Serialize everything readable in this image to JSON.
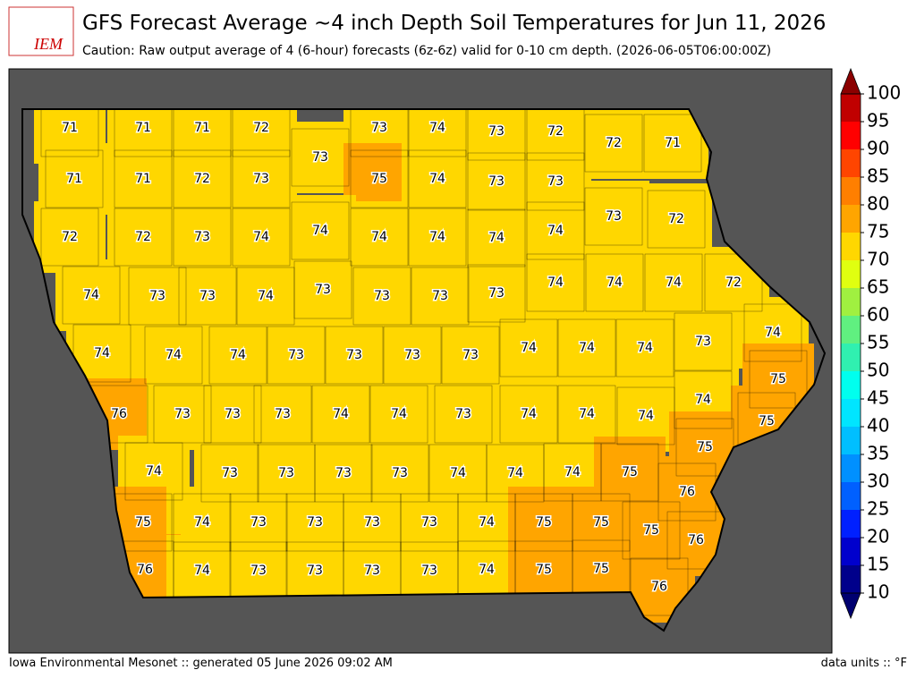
{
  "logo": "IEM",
  "title": "GFS Forecast Average ~4 inch Depth Soil Temperatures for Jun 11, 2026",
  "subtitle": "Caution: Raw output average of 4 (6-hour) forecasts (6z-6z) valid for 0-10 cm depth. (2026-06-05T06:00:00Z)",
  "footer_left": "Iowa Environmental Mesonet :: generated 05 June 2026 09:02 AM",
  "footer_right": "data units :: °F",
  "colorbar": {
    "ticks": [
      10,
      15,
      20,
      25,
      30,
      35,
      40,
      45,
      50,
      55,
      60,
      65,
      70,
      75,
      80,
      85,
      90,
      95,
      100
    ],
    "colors": [
      "#00008b",
      "#0000cd",
      "#0020ff",
      "#0060ff",
      "#0090ff",
      "#00bfff",
      "#00e5ff",
      "#00ffee",
      "#30f0b0",
      "#60f080",
      "#a0f040",
      "#e0ff10",
      "#ffd700",
      "#ffa500",
      "#ff7f00",
      "#ff4500",
      "#ff0000",
      "#c00000"
    ],
    "under_color": "#000070",
    "over_color": "#8b0000"
  },
  "counties": [
    71,
    71,
    71,
    72,
    73,
    74,
    73,
    72,
    72,
    71,
    73,
    71,
    71,
    72,
    73,
    75,
    74,
    73,
    73,
    73,
    72,
    72,
    72,
    73,
    74,
    74,
    74,
    74,
    74,
    74,
    74,
    73,
    73,
    74,
    73,
    73,
    73,
    73,
    74,
    74,
    74,
    72,
    74,
    74,
    74,
    73,
    73,
    73,
    73,
    74,
    74,
    74,
    73,
    74,
    75,
    76,
    73,
    73,
    73,
    74,
    74,
    73,
    74,
    74,
    74,
    74,
    75,
    75,
    74,
    73,
    73,
    73,
    73,
    74,
    74,
    74,
    75,
    76,
    75,
    74,
    73,
    73,
    73,
    73,
    74,
    75,
    75,
    75,
    76,
    76,
    74,
    73,
    73,
    73,
    73,
    74,
    75,
    75,
    76
  ]
}
